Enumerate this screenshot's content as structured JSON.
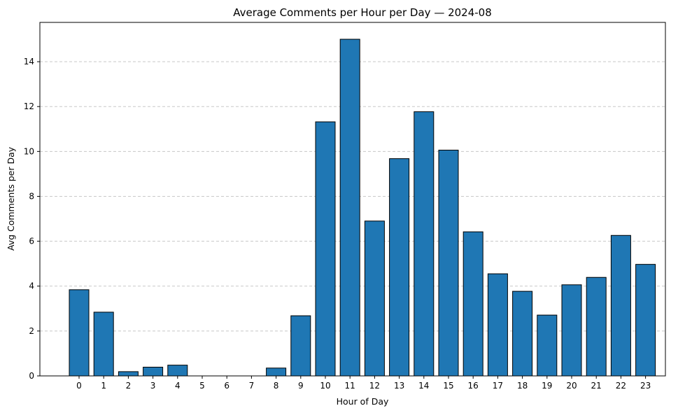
{
  "chart_data": {
    "type": "bar",
    "title": "Average Comments per Hour per Day — 2024-08",
    "xlabel": "Hour of Day",
    "ylabel": "Avg Comments per Day",
    "categories": [
      "0",
      "1",
      "2",
      "3",
      "4",
      "5",
      "6",
      "7",
      "8",
      "9",
      "10",
      "11",
      "12",
      "13",
      "14",
      "15",
      "16",
      "17",
      "18",
      "19",
      "20",
      "21",
      "22",
      "23"
    ],
    "values": [
      3.84,
      2.84,
      0.19,
      0.39,
      0.48,
      0.0,
      0.0,
      0.0,
      0.35,
      2.68,
      11.32,
      15.0,
      6.9,
      9.68,
      11.77,
      10.06,
      6.42,
      4.55,
      3.77,
      2.71,
      4.06,
      4.39,
      6.26,
      4.97
    ],
    "ylim": [
      0,
      15.75
    ],
    "yticks": [
      0,
      2,
      4,
      6,
      8,
      10,
      12,
      14
    ],
    "grid": "horizontal-dashed",
    "bar_color": "#1f77b4",
    "edge_color": "#000000",
    "grid_color": "#c8c8c8"
  }
}
